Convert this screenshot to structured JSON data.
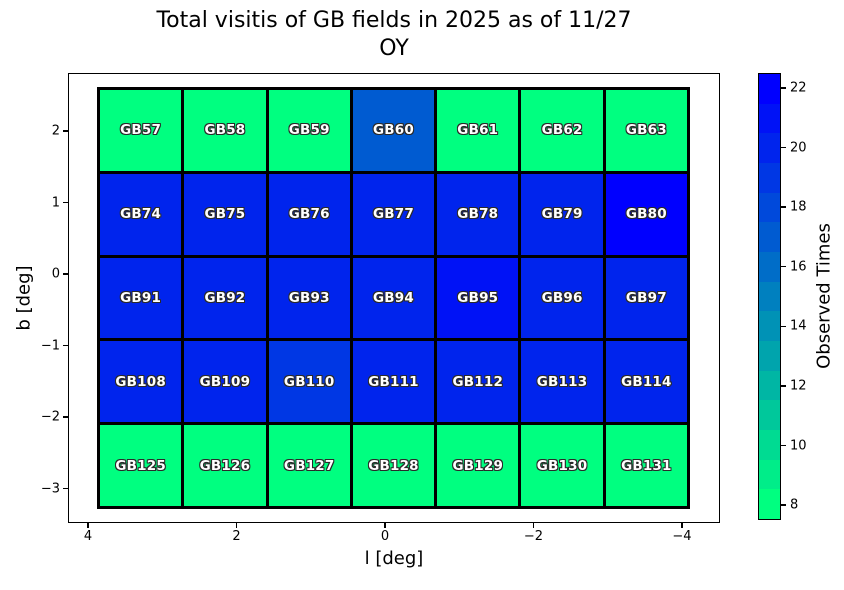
{
  "title": {
    "line1": "Total visitis of GB fields in 2025 as of 11/27",
    "line2": "OY"
  },
  "axes": {
    "xlabel": "l [deg]",
    "ylabel": "b [deg]"
  },
  "colorbar": {
    "label": "Observed Times"
  },
  "colors": {
    "colormap_low": "#00FF80",
    "colormap_high": "#0000FF",
    "cell_edge": "#000000",
    "cell_text": "#ffffff"
  },
  "chart_data": {
    "type": "heatmap",
    "title": "Total visitis of GB fields in 2025 as of 11/27 OY",
    "xlabel": "l [deg]",
    "ylabel": "b [deg]",
    "colorbar_label": "Observed Times",
    "colormap": "winter_r",
    "n_color_bands": 15,
    "value_range": [
      7.5,
      22.5
    ],
    "x_ticks": [
      {
        "v": 4,
        "label": "4"
      },
      {
        "v": 2,
        "label": "2"
      },
      {
        "v": 0,
        "label": "0"
      },
      {
        "v": -2,
        "label": "−2"
      },
      {
        "v": -4,
        "label": "−4"
      }
    ],
    "y_ticks": [
      {
        "v": 2,
        "label": "2"
      },
      {
        "v": 1,
        "label": "1"
      },
      {
        "v": 0,
        "label": "0"
      },
      {
        "v": -1,
        "label": "−1"
      },
      {
        "v": -2,
        "label": "−2"
      },
      {
        "v": -3,
        "label": "−3"
      }
    ],
    "colorbar_ticks": [
      {
        "v": 22,
        "label": "22"
      },
      {
        "v": 20,
        "label": "20"
      },
      {
        "v": 18,
        "label": "18"
      },
      {
        "v": 16,
        "label": "16"
      },
      {
        "v": 14,
        "label": "14"
      },
      {
        "v": 12,
        "label": "12"
      },
      {
        "v": 10,
        "label": "10"
      },
      {
        "v": 8,
        "label": "8"
      }
    ],
    "grid": {
      "n_rows": 5,
      "n_cols": 7,
      "rows": [
        {
          "labels": [
            "GB57",
            "GB58",
            "GB59",
            "GB60",
            "GB61",
            "GB62",
            "GB63"
          ],
          "values": [
            8,
            8,
            8,
            17,
            8,
            8,
            8
          ]
        },
        {
          "labels": [
            "GB74",
            "GB75",
            "GB76",
            "GB77",
            "GB78",
            "GB79",
            "GB80"
          ],
          "values": [
            20,
            20,
            20,
            20,
            20,
            20,
            22
          ]
        },
        {
          "labels": [
            "GB91",
            "GB92",
            "GB93",
            "GB94",
            "GB95",
            "GB96",
            "GB97"
          ],
          "values": [
            20,
            20,
            20,
            20,
            21,
            20,
            20
          ]
        },
        {
          "labels": [
            "GB108",
            "GB109",
            "GB110",
            "GB111",
            "GB112",
            "GB113",
            "GB114"
          ],
          "values": [
            20,
            20,
            19,
            20,
            20,
            20,
            20
          ]
        },
        {
          "labels": [
            "GB125",
            "GB126",
            "GB127",
            "GB128",
            "GB129",
            "GB130",
            "GB131"
          ],
          "values": [
            8,
            8,
            8,
            8,
            8,
            8,
            8
          ]
        }
      ]
    }
  }
}
